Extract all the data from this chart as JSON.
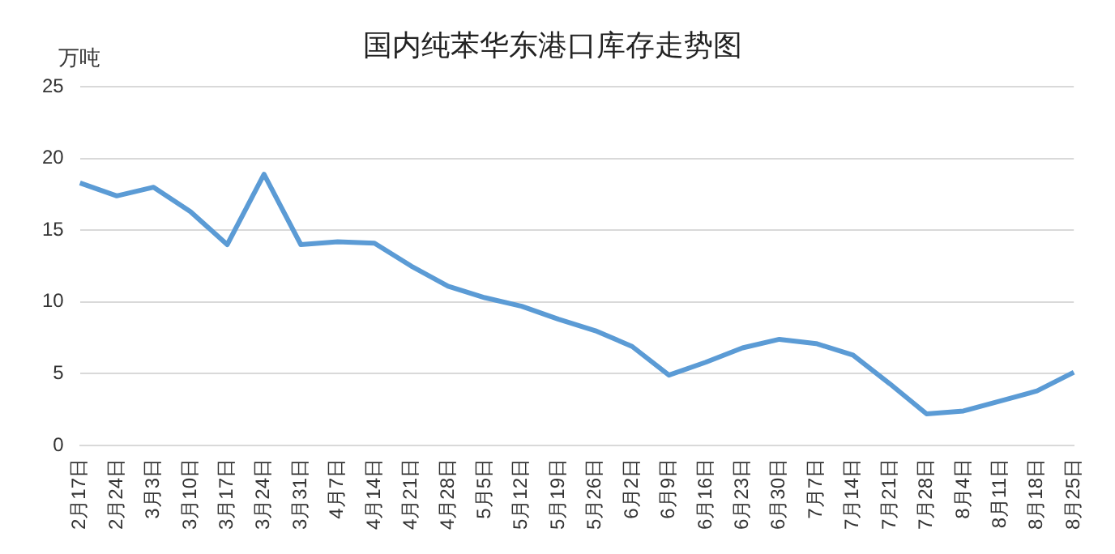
{
  "chart_data": {
    "type": "line",
    "title": "国内纯苯华东港口库存走势图",
    "ylabel": "万吨",
    "categories": [
      "2月17日",
      "2月24日",
      "3月3日",
      "3月10日",
      "3月17日",
      "3月24日",
      "3月31日",
      "4月7日",
      "4月14日",
      "4月21日",
      "4月28日",
      "5月5日",
      "5月12日",
      "5月19日",
      "5月26日",
      "6月2日",
      "6月9日",
      "6月16日",
      "6月23日",
      "6月30日",
      "7月7日",
      "7月14日",
      "7月21日",
      "7月28日",
      "8月4日",
      "8月11日",
      "8月18日",
      "8月25日"
    ],
    "series": [
      {
        "color": "#5b9bd5",
        "values": [
          18.3,
          17.4,
          18.0,
          16.3,
          14.0,
          18.9,
          14.0,
          14.2,
          14.1,
          12.5,
          11.1,
          10.3,
          9.7,
          8.8,
          8.0,
          6.9,
          4.9,
          5.8,
          6.8,
          7.4,
          7.1,
          6.3,
          4.3,
          2.2,
          2.4,
          3.1,
          3.8,
          5.1
        ]
      }
    ],
    "ylim": [
      0,
      25
    ],
    "yticks": [
      0,
      5,
      10,
      15,
      20,
      25
    ],
    "grid": "y",
    "legend": false,
    "marker": "none",
    "line_style": "solid"
  }
}
